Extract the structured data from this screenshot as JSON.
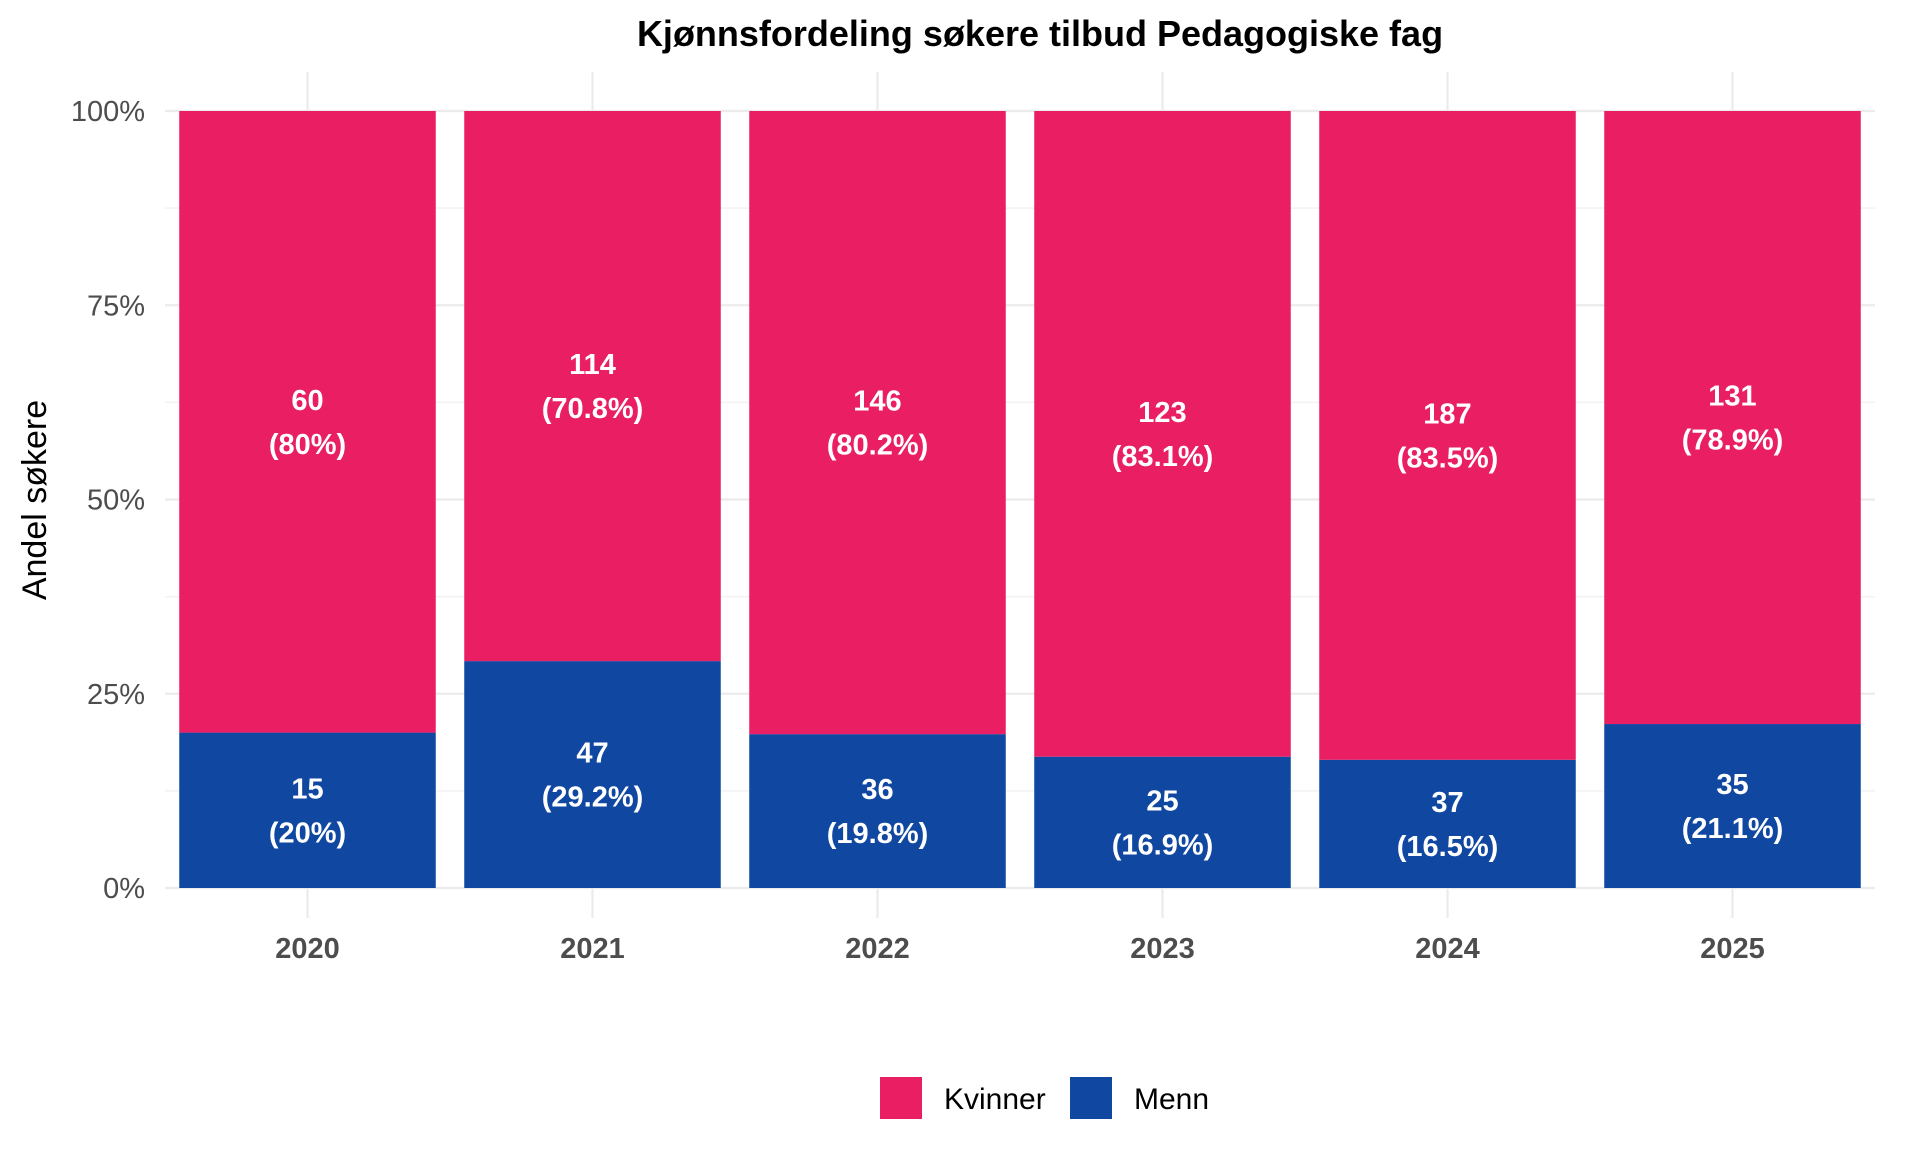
{
  "chart_data": {
    "type": "bar",
    "stacked": true,
    "normalized": true,
    "title": "Kjønnsfordeling søkere tilbud Pedagogiske fag",
    "xlabel": "",
    "ylabel": "Andel søkere",
    "ylim": [
      0,
      1
    ],
    "y_ticks": [
      {
        "value": 0,
        "label": "0%"
      },
      {
        "value": 0.25,
        "label": "25%"
      },
      {
        "value": 0.5,
        "label": "50%"
      },
      {
        "value": 0.75,
        "label": "75%"
      },
      {
        "value": 1,
        "label": "100%"
      }
    ],
    "categories": [
      "2020",
      "2021",
      "2022",
      "2023",
      "2024",
      "2025"
    ],
    "series": [
      {
        "name": "Menn",
        "color": "#0f47a1",
        "counts": [
          15,
          47,
          36,
          25,
          37,
          35
        ],
        "shares": [
          0.2,
          0.292,
          0.198,
          0.169,
          0.165,
          0.211
        ],
        "count_labels": [
          "15",
          "47",
          "36",
          "25",
          "37",
          "35"
        ],
        "pct_labels": [
          "(20%)",
          "(29.2%)",
          "(19.8%)",
          "(16.9%)",
          "(16.5%)",
          "(21.1%)"
        ]
      },
      {
        "name": "Kvinner",
        "color": "#e91e63",
        "counts": [
          60,
          114,
          146,
          123,
          187,
          131
        ],
        "shares": [
          0.8,
          0.708,
          0.802,
          0.831,
          0.835,
          0.789
        ],
        "count_labels": [
          "60",
          "114",
          "146",
          "123",
          "187",
          "131"
        ],
        "pct_labels": [
          "(80%)",
          "(70.8%)",
          "(80.2%)",
          "(83.1%)",
          "(83.5%)",
          "(78.9%)"
        ]
      }
    ],
    "legend": {
      "position": "bottom",
      "entries": [
        {
          "name": "Kvinner",
          "color": "#e91e63"
        },
        {
          "name": "Menn",
          "color": "#0f47a1"
        }
      ]
    },
    "grid": true
  }
}
